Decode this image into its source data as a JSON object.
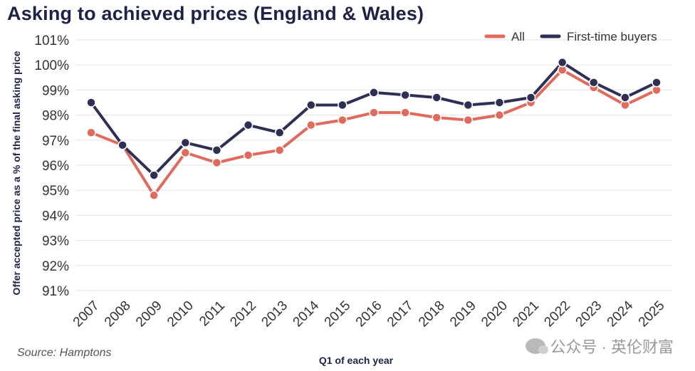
{
  "title": "Asking to achieved prices (England & Wales)",
  "source": "Source: Hamptons",
  "watermark": "公众号 · 英伦财富",
  "colors": {
    "all": "#e06b5d",
    "ftb": "#2f2f55",
    "grid": "#e3e3e3"
  },
  "chart_data": {
    "type": "line",
    "title": "Asking to achieved prices (England & Wales)",
    "xlabel": "Q1 of each year",
    "ylabel": "Offer accepted price as a % of the final asking price",
    "ylim": [
      91,
      101
    ],
    "yticks": [
      "91%",
      "92%",
      "93%",
      "94%",
      "95%",
      "96%",
      "97%",
      "98%",
      "99%",
      "100%",
      "101%"
    ],
    "grid": "horizontal",
    "legend_position": "top-right",
    "categories": [
      "2007",
      "2008",
      "2009",
      "2010",
      "2011",
      "2012",
      "2013",
      "2014",
      "2015",
      "2016",
      "2017",
      "2018",
      "2019",
      "2020",
      "2021",
      "2022",
      "2023",
      "2024",
      "2025"
    ],
    "series": [
      {
        "name": "All",
        "color": "#e06b5d",
        "values": [
          97.3,
          96.8,
          94.8,
          96.5,
          96.1,
          96.4,
          96.6,
          97.6,
          97.8,
          98.1,
          98.1,
          97.9,
          97.8,
          98.0,
          98.5,
          99.8,
          99.1,
          98.4,
          99.0
        ]
      },
      {
        "name": "First-time buyers",
        "color": "#2f2f55",
        "values": [
          98.5,
          96.8,
          95.6,
          96.9,
          96.6,
          97.6,
          97.3,
          98.4,
          98.4,
          98.9,
          98.8,
          98.7,
          98.4,
          98.5,
          98.7,
          100.1,
          99.3,
          98.7,
          99.3
        ]
      }
    ]
  }
}
